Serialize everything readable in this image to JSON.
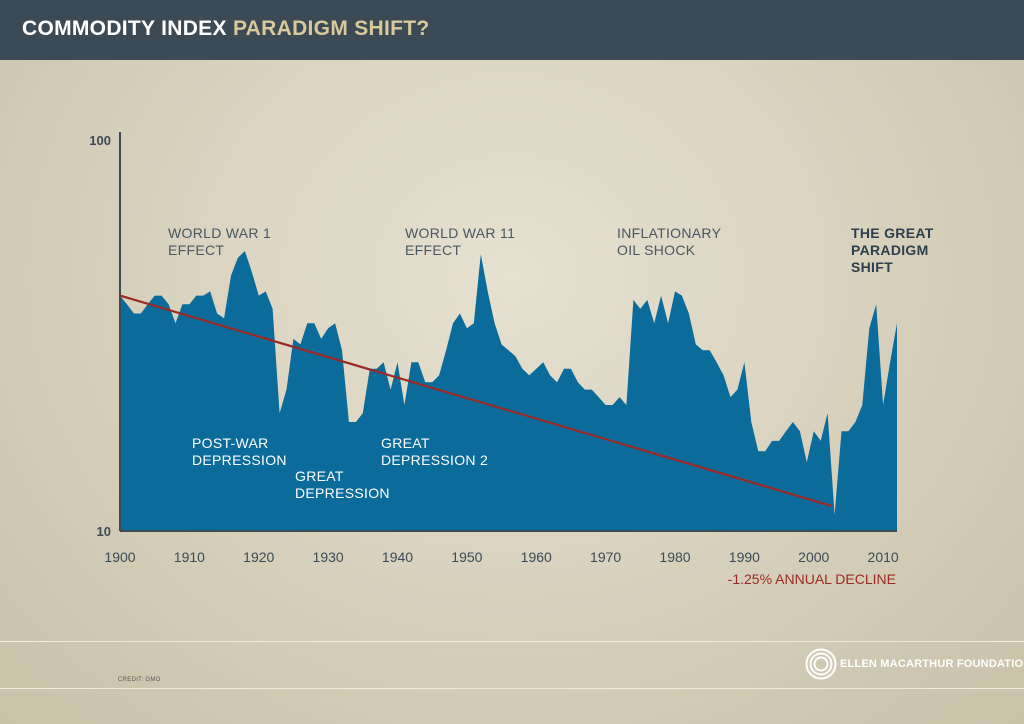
{
  "header": {
    "title_main": "COMMODITY INDEX",
    "title_accent": "PARADIGM SHIFT?"
  },
  "colors": {
    "header_bg": "#3c4a55",
    "area_fill": "#0b6b9a",
    "trend_line": "#9b2a25",
    "accent_text": "#d8c99a"
  },
  "chart_data": {
    "type": "area",
    "yscale": "log",
    "ylim": [
      10,
      100
    ],
    "xlim": [
      1900,
      2012
    ],
    "y_ticks": [
      "100",
      "10"
    ],
    "x_ticks": [
      "1900",
      "1910",
      "1920",
      "1930",
      "1940",
      "1950",
      "1960",
      "1970",
      "1980",
      "1990",
      "2000",
      "2010"
    ],
    "series": [
      {
        "x": [
          1900,
          1901,
          1902,
          1903,
          1904,
          1905,
          1906,
          1907,
          1908,
          1909,
          1910,
          1911,
          1912,
          1913,
          1914,
          1915,
          1916,
          1917,
          1918,
          1919,
          1920,
          1921,
          1922,
          1923,
          1924,
          1925,
          1926,
          1927,
          1928,
          1929,
          1930,
          1931,
          1932,
          1933,
          1934,
          1935,
          1936,
          1937,
          1938,
          1939,
          1940,
          1941,
          1942,
          1943,
          1944,
          1945,
          1946,
          1947,
          1948,
          1949,
          1950,
          1951,
          1952,
          1953,
          1954,
          1955,
          1956,
          1957,
          1958,
          1959,
          1960,
          1961,
          1962,
          1963,
          1964,
          1965,
          1966,
          1967,
          1968,
          1969,
          1970,
          1971,
          1972,
          1973,
          1974,
          1975,
          1976,
          1977,
          1978,
          1979,
          1980,
          1981,
          1982,
          1983,
          1984,
          1985,
          1986,
          1987,
          1988,
          1989,
          1990,
          1991,
          1992,
          1993,
          1994,
          1995,
          1996,
          1997,
          1998,
          1999,
          2000,
          2001,
          2002,
          2003,
          2004,
          2005,
          2006,
          2007,
          2008,
          2009,
          2010,
          2011,
          2012
        ],
        "values": [
          40,
          38,
          36,
          36,
          38,
          40,
          40,
          38,
          34,
          38,
          38,
          40,
          40,
          41,
          36,
          35,
          45,
          50,
          52,
          46,
          40,
          41,
          37,
          20,
          23,
          31,
          30,
          34,
          34,
          31,
          33,
          34,
          29,
          19,
          19,
          20,
          26,
          26,
          27,
          23,
          27,
          21,
          27,
          27,
          24,
          24,
          25,
          29,
          34,
          36,
          33,
          34,
          51,
          41,
          34,
          30,
          29,
          28,
          26,
          25,
          26,
          27,
          25,
          24,
          26,
          26,
          24,
          23,
          23,
          22,
          21,
          21,
          22,
          21,
          39,
          37,
          39,
          34,
          40,
          34,
          41,
          40,
          36,
          30,
          29,
          29,
          27,
          25,
          22,
          23,
          27,
          19,
          16,
          16,
          17,
          17,
          18,
          19,
          18,
          15,
          18,
          17,
          20,
          11,
          18,
          18,
          19,
          21,
          33,
          38,
          21,
          27,
          34
        ]
      }
    ],
    "trend": {
      "from": [
        1900,
        40
      ],
      "to": [
        2002.5,
        11.6
      ]
    },
    "annotations": [
      {
        "lines": [
          "WORLD WAR 1",
          "EFFECT"
        ],
        "bold": false
      },
      {
        "lines": [
          "WORLD WAR 11",
          "EFFECT"
        ],
        "bold": false
      },
      {
        "lines": [
          "INFLATIONARY",
          "OIL SHOCK"
        ],
        "bold": false
      },
      {
        "lines": [
          "THE GREAT",
          "PARADIGM",
          "SHIFT"
        ],
        "bold": true
      },
      {
        "lines": [
          "POST-WAR",
          "DEPRESSION"
        ],
        "bold": false
      },
      {
        "lines": [
          "GREAT",
          "DEPRESSION"
        ],
        "bold": false
      },
      {
        "lines": [
          "GREAT",
          "DEPRESSION 2"
        ],
        "bold": false
      }
    ],
    "trend_label": "-1.25% ANNUAL DECLINE"
  },
  "footer": {
    "credit": "CREDIT: GMO",
    "logo_text": "ELLEN MACARTHUR FOUNDATION"
  }
}
